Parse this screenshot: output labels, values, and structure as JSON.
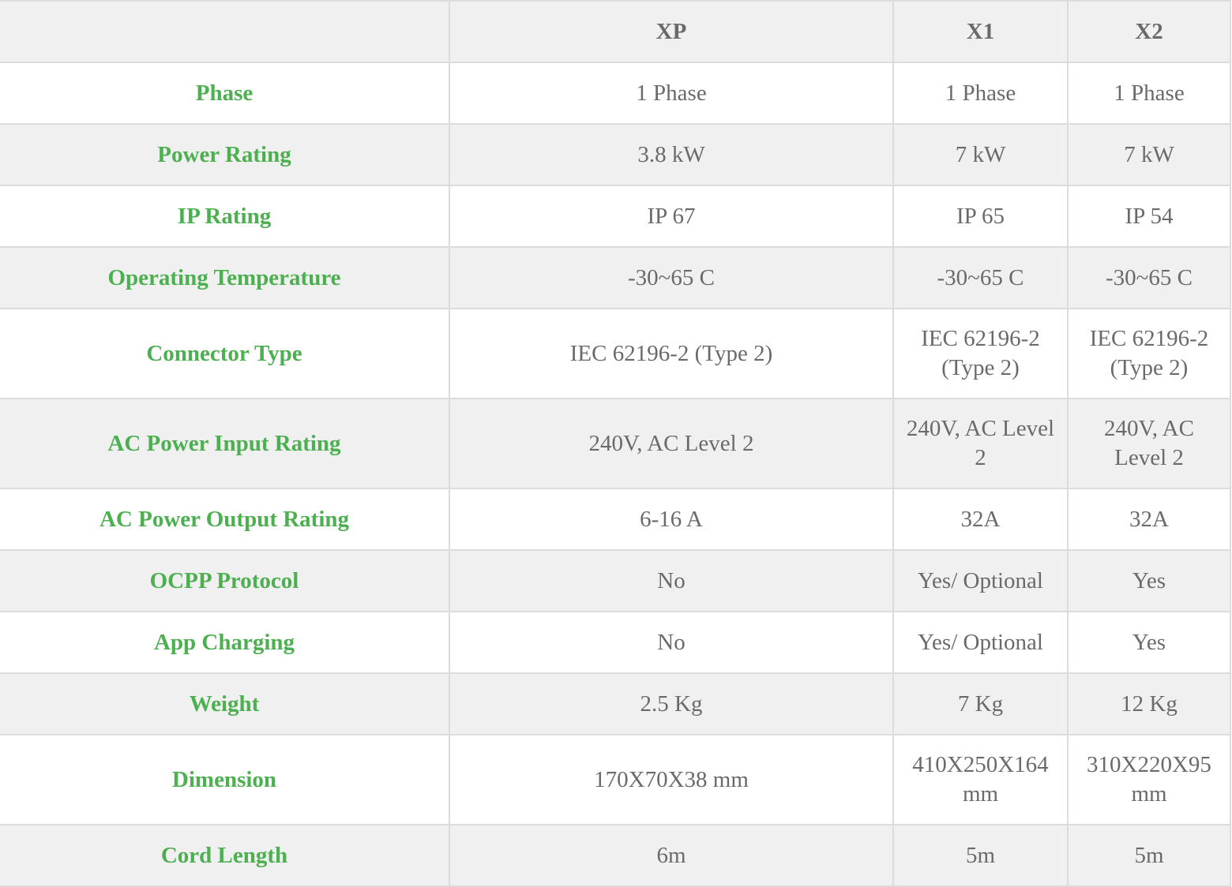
{
  "table": {
    "columns": [
      "",
      "XP",
      "X1",
      "X2"
    ],
    "rows": [
      {
        "label": "Phase",
        "values": [
          "1 Phase",
          "1 Phase",
          "1 Phase"
        ]
      },
      {
        "label": "Power Rating",
        "values": [
          "3.8 kW",
          "7 kW",
          "7 kW"
        ]
      },
      {
        "label": "IP Rating",
        "values": [
          "IP 67",
          "IP 65",
          "IP 54"
        ]
      },
      {
        "label": "Operating Temperature",
        "values": [
          "-30~65 C",
          "-30~65 C",
          "-30~65 C"
        ]
      },
      {
        "label": "Connector Type",
        "values": [
          "IEC 62196-2 (Type 2)",
          "IEC 62196-2 (Type 2)",
          "IEC 62196-2 (Type 2)"
        ]
      },
      {
        "label": "AC Power Input Rating",
        "values": [
          "240V, AC Level 2",
          "240V, AC Level 2",
          "240V, AC Level 2"
        ]
      },
      {
        "label": "AC Power Output Rating",
        "values": [
          "6-16 A",
          "32A",
          "32A"
        ]
      },
      {
        "label": "OCPP Protocol",
        "values": [
          "No",
          "Yes/ Optional",
          "Yes"
        ]
      },
      {
        "label": "App Charging",
        "values": [
          "No",
          "Yes/ Optional",
          "Yes"
        ]
      },
      {
        "label": "Weight",
        "values": [
          "2.5 Kg",
          "7 Kg",
          "12 Kg"
        ]
      },
      {
        "label": "Dimension",
        "values": [
          "170X70X38 mm",
          "410X250X164 mm",
          "310X220X95 mm"
        ]
      },
      {
        "label": "Cord Length",
        "values": [
          "6m",
          "5m",
          "5m"
        ]
      }
    ]
  },
  "colors": {
    "label_green": "#4caf50",
    "text_gray": "#6a6a6a",
    "shade_row": "#f0f0f0",
    "border": "#dcdcdc"
  }
}
